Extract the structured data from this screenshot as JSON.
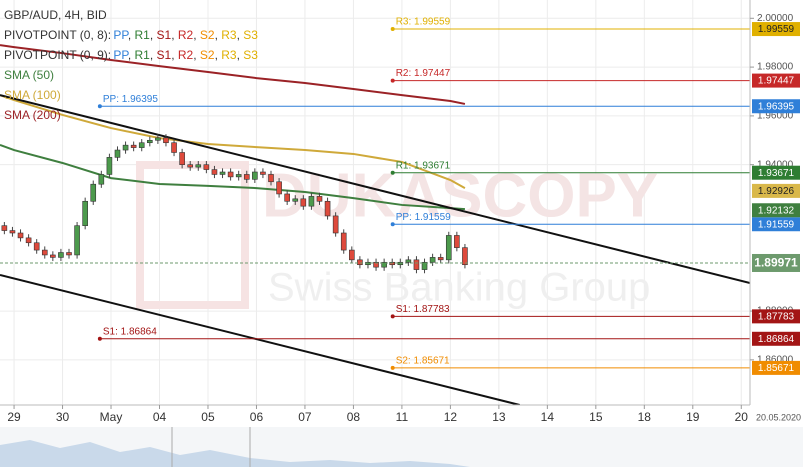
{
  "chart_data": {
    "type": "candlestick",
    "title": "GBP/AUD, 4H, BID",
    "xlim": [
      -0.29,
      15.18
    ],
    "xticks": [
      {
        "value": 0,
        "label": "29"
      },
      {
        "value": 1,
        "label": "30"
      },
      {
        "value": 2,
        "label": "May"
      },
      {
        "value": 3,
        "label": "04"
      },
      {
        "value": 4,
        "label": "05"
      },
      {
        "value": 5,
        "label": "06"
      },
      {
        "value": 6,
        "label": "07"
      },
      {
        "value": 7,
        "label": "08"
      },
      {
        "value": 8,
        "label": "11"
      },
      {
        "value": 9,
        "label": "12"
      },
      {
        "value": 10,
        "label": "13"
      },
      {
        "value": 11,
        "label": "14"
      },
      {
        "value": 12,
        "label": "15"
      },
      {
        "value": 13,
        "label": "18"
      },
      {
        "value": 14,
        "label": "19"
      },
      {
        "value": 15,
        "label": "20"
      }
    ],
    "x_end_label": "20.05.2020",
    "ylim": [
      1.8415,
      2.0075
    ],
    "yticks": [
      {
        "value": 1.86,
        "label": "1.86000"
      },
      {
        "value": 1.88,
        "label": "1.88000"
      },
      {
        "value": 1.94,
        "label": "1.94000"
      },
      {
        "value": 1.96,
        "label": "1.96000"
      },
      {
        "value": 1.98,
        "label": "1.98000"
      },
      {
        "value": 2.0,
        "label": "2.00000"
      }
    ],
    "grid": true,
    "candles": {
      "up_color": "#4c9a4c",
      "down_color": "#de4a3c",
      "open": [
        1.915,
        1.913,
        1.912,
        1.91,
        1.908,
        1.905,
        1.903,
        1.902,
        1.904,
        1.903,
        1.915,
        1.925,
        1.932,
        1.936,
        1.943,
        1.946,
        1.948,
        1.947,
        1.949,
        1.95,
        1.951,
        1.949,
        1.945,
        1.94,
        1.939,
        1.94,
        1.938,
        1.936,
        1.937,
        1.935,
        1.936,
        1.934,
        1.937,
        1.936,
        1.933,
        1.928,
        1.925,
        1.926,
        1.923,
        1.927,
        1.925,
        1.919,
        1.912,
        1.905,
        1.901,
        1.899,
        1.9,
        1.898,
        1.9,
        1.899,
        1.9,
        1.901,
        1.897,
        1.9,
        1.902,
        1.901,
        1.911,
        1.906
      ],
      "high": [
        1.9165,
        1.9145,
        1.9135,
        1.9115,
        1.9095,
        1.9065,
        1.9045,
        1.9055,
        1.9055,
        1.9165,
        1.9265,
        1.9335,
        1.9375,
        1.9445,
        1.9475,
        1.9495,
        1.9495,
        1.9505,
        1.9515,
        1.9525,
        1.9525,
        1.9505,
        1.9465,
        1.9415,
        1.9415,
        1.9415,
        1.9395,
        1.9385,
        1.9385,
        1.9375,
        1.9375,
        1.9385,
        1.9385,
        1.9375,
        1.9345,
        1.9295,
        1.9275,
        1.9275,
        1.9285,
        1.9285,
        1.9265,
        1.9205,
        1.9135,
        1.9065,
        1.9025,
        1.9015,
        1.9015,
        1.9015,
        1.9015,
        1.9015,
        1.9025,
        1.9025,
        1.9015,
        1.9035,
        1.9035,
        1.9125,
        1.9125,
        1.9075
      ],
      "low": [
        1.9115,
        1.9105,
        1.9085,
        1.9065,
        1.9035,
        1.9015,
        1.9005,
        1.9005,
        1.9015,
        1.9015,
        1.9135,
        1.9235,
        1.9305,
        1.9345,
        1.9415,
        1.9445,
        1.9455,
        1.9455,
        1.9475,
        1.9485,
        1.9475,
        1.9435,
        1.9385,
        1.9375,
        1.9375,
        1.9365,
        1.9345,
        1.9345,
        1.9335,
        1.9335,
        1.9325,
        1.9325,
        1.9345,
        1.9315,
        1.9265,
        1.9235,
        1.9235,
        1.9215,
        1.9215,
        1.9235,
        1.9175,
        1.9105,
        1.9035,
        1.8995,
        1.8975,
        1.8975,
        1.8965,
        1.8965,
        1.8975,
        1.8975,
        1.8985,
        1.8955,
        1.8955,
        1.8985,
        1.8995,
        1.8995,
        1.9045,
        1.8975
      ],
      "close": [
        1.913,
        1.912,
        1.91,
        1.908,
        1.905,
        1.903,
        1.902,
        1.904,
        1.903,
        1.915,
        1.925,
        1.932,
        1.936,
        1.943,
        1.946,
        1.948,
        1.947,
        1.949,
        1.95,
        1.951,
        1.949,
        1.945,
        1.94,
        1.939,
        1.94,
        1.938,
        1.936,
        1.937,
        1.935,
        1.936,
        1.934,
        1.937,
        1.936,
        1.933,
        1.928,
        1.925,
        1.926,
        1.923,
        1.927,
        1.925,
        1.919,
        1.912,
        1.905,
        1.901,
        1.899,
        1.9,
        1.898,
        1.9,
        1.899,
        1.9,
        1.901,
        1.897,
        1.9,
        1.902,
        1.901,
        1.911,
        1.906,
        1.899
      ]
    },
    "series": [
      {
        "name": "SMA (50)",
        "color": "#3f7f3f",
        "x": [
          -0.29,
          0,
          1,
          2,
          3,
          4,
          5,
          6,
          7,
          8,
          9,
          9.3
        ],
        "values": [
          1.9481,
          1.946,
          1.9407,
          1.9345,
          1.9321,
          1.9313,
          1.9304,
          1.9288,
          1.9263,
          1.9235,
          1.9222,
          1.9218
        ]
      },
      {
        "name": "SMA (100)",
        "color": "#cfa93a",
        "x": [
          -0.29,
          0,
          1,
          2,
          3,
          4,
          5,
          6,
          7,
          8,
          9,
          9.3
        ],
        "values": [
          1.9685,
          1.9665,
          1.9604,
          1.955,
          1.9509,
          1.9485,
          1.9472,
          1.946,
          1.9444,
          1.9411,
          1.9337,
          1.9304
        ]
      },
      {
        "name": "SMA (200)",
        "color": "#9b2226",
        "x": [
          -0.29,
          0,
          1,
          2,
          3,
          4,
          5,
          6,
          7,
          8,
          9,
          9.3
        ],
        "values": [
          1.989,
          1.9882,
          1.9857,
          1.9829,
          1.9804,
          1.978,
          1.9755,
          1.9735,
          1.971,
          1.9685,
          1.9661,
          1.9649
        ]
      }
    ],
    "pivot_legends": [
      {
        "name": "PIVOTPOINT (0, 8):",
        "items": [
          {
            "text": "PP",
            "color": "#2f7fd8"
          },
          {
            "text": "R1",
            "color": "#2e7d32"
          },
          {
            "text": "S1",
            "color": "#a31515"
          },
          {
            "text": "R2",
            "color": "#c62828"
          },
          {
            "text": "S2",
            "color": "#f08c00"
          },
          {
            "text": "R3",
            "color": "#e0b000"
          },
          {
            "text": "S3",
            "color": "#e0b000"
          }
        ]
      },
      {
        "name": "PIVOTPOINT (0, 9):",
        "items": [
          {
            "text": "PP",
            "color": "#2f7fd8"
          },
          {
            "text": "R1",
            "color": "#2e7d32"
          },
          {
            "text": "S1",
            "color": "#a31515"
          },
          {
            "text": "R2",
            "color": "#c62828"
          },
          {
            "text": "S2",
            "color": "#f08c00"
          },
          {
            "text": "R3",
            "color": "#e0b000"
          },
          {
            "text": "S3",
            "color": "#e0b000"
          }
        ]
      }
    ],
    "separator": ", ",
    "levels": [
      {
        "label": "R3: 1.99559",
        "value": 1.99559,
        "color": "#e0b000",
        "from": 7.81,
        "text_color": "#222222"
      },
      {
        "label": "R2: 1.97447",
        "value": 1.97447,
        "color": "#c62828",
        "from": 7.81,
        "text_color": "#ffffff"
      },
      {
        "label": "PP: 1.96395",
        "value": 1.96395,
        "color": "#2f7fd8",
        "from": 1.77,
        "text_color": "#ffffff"
      },
      {
        "label": "R1: 1.93671",
        "value": 1.93671,
        "color": "#2e7d32",
        "from": 7.81,
        "text_color": "#ffffff"
      },
      {
        "label": "PP: 1.91559",
        "value": 1.91559,
        "color": "#2f7fd8",
        "from": 7.81,
        "text_color": "#ffffff"
      },
      {
        "label": "S1: 1.87783",
        "value": 1.87783,
        "color": "#a31515",
        "from": 7.81,
        "text_color": "#ffffff"
      },
      {
        "label": "S1: 1.86864",
        "value": 1.86864,
        "color": "#a31515",
        "from": 1.77,
        "text_color": "#ffffff"
      },
      {
        "label": "S2: 1.85671",
        "value": 1.85671,
        "color": "#f08c00",
        "from": 7.81,
        "text_color": "#ffffff"
      }
    ],
    "markers": [
      {
        "value": 1.92926,
        "color": "#d9b84a",
        "text_color": "#222222"
      },
      {
        "value": 1.92132,
        "color": "#3f7f3f",
        "text_color": "#ffffff"
      }
    ],
    "last_price": {
      "value": 1.89971,
      "color": "#6d9a6d",
      "text_color": "#ffffff"
    },
    "trendlines": [
      {
        "x": [
          -0.29,
          15.18
        ],
        "values": [
          1.9685,
          1.8915
        ]
      },
      {
        "x": [
          -0.29,
          10.43
        ],
        "values": [
          1.8948,
          1.8415
        ]
      }
    ],
    "watermark": [
      "DUKASCOPY",
      "Swiss Banking Group"
    ]
  }
}
